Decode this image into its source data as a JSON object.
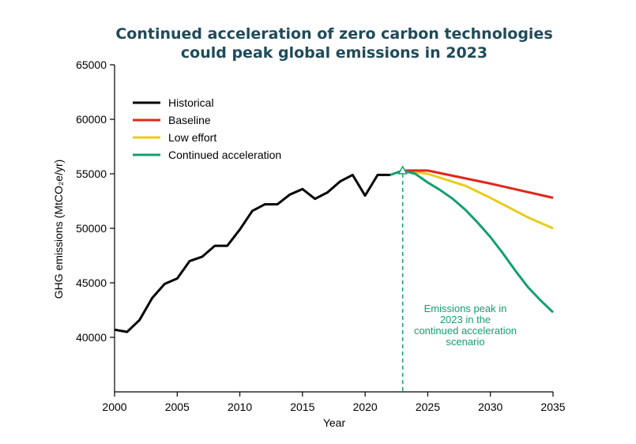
{
  "chart_data": {
    "type": "line",
    "title": [
      "Continued acceleration of zero carbon technologies",
      "could peak global emissions in 2023"
    ],
    "xlabel": "Year",
    "ylabel": "GHG emissions (MtCO₂e/yr)",
    "xlim": [
      2000,
      2035
    ],
    "ylim": [
      35000,
      65000
    ],
    "xticks": [
      2000,
      2005,
      2010,
      2015,
      2020,
      2025,
      2030,
      2035
    ],
    "yticks": [
      40000,
      45000,
      50000,
      55000,
      60000,
      65000
    ],
    "legend_position": "top-left",
    "series": [
      {
        "name": "Historical",
        "color": "#000000",
        "x": [
          2000,
          2001,
          2002,
          2003,
          2004,
          2005,
          2006,
          2007,
          2008,
          2009,
          2010,
          2011,
          2012,
          2013,
          2014,
          2015,
          2016,
          2017,
          2018,
          2019,
          2020,
          2021,
          2022
        ],
        "values": [
          40700,
          40500,
          41600,
          43600,
          44900,
          45400,
          47000,
          47400,
          48400,
          48400,
          49900,
          51600,
          52200,
          52200,
          53100,
          53600,
          52700,
          53300,
          54300,
          54900,
          53000,
          54900,
          54900
        ]
      },
      {
        "name": "Baseline",
        "color": "#e0261b",
        "x": [
          2023,
          2025,
          2030,
          2035
        ],
        "values": [
          55300,
          55300,
          54100,
          52800
        ]
      },
      {
        "name": "Low effort",
        "color": "#e8cc1e",
        "x": [
          2023,
          2025,
          2028,
          2030,
          2033,
          2035
        ],
        "values": [
          55300,
          55000,
          53900,
          52800,
          51000,
          50000
        ]
      },
      {
        "name": "Continued acceleration",
        "color": "#13a06e",
        "x": [
          2022,
          2023,
          2024,
          2025,
          2026,
          2027,
          2028,
          2029,
          2030,
          2031,
          2032,
          2033,
          2034,
          2035
        ],
        "values": [
          54900,
          55300,
          55000,
          54200,
          53500,
          52700,
          51700,
          50500,
          49200,
          47700,
          46100,
          44600,
          43400,
          42300
        ]
      }
    ],
    "peak_marker": {
      "x": 2023,
      "y": 55300,
      "color": "#13a06e"
    },
    "annotation": {
      "lines": [
        "Emissions peak in",
        "2023 in the",
        "continued acceleration",
        "scenario"
      ],
      "color": "#13a06e"
    }
  }
}
